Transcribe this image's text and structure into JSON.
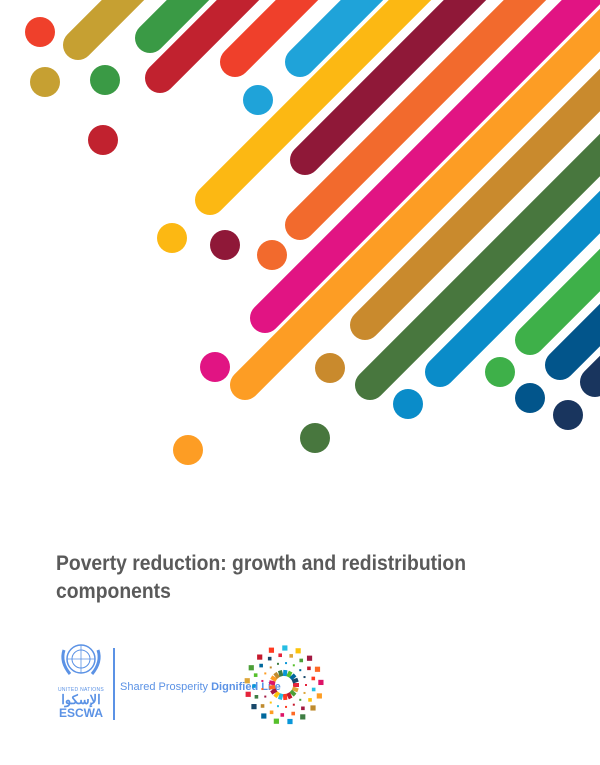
{
  "title": "Poverty reduction: growth and redistribution components",
  "logos": {
    "un_label": "UNITED NATIONS",
    "escwa_arabic": "الإسكوا",
    "escwa": "ESCWA",
    "tagline_regular": "Shared Prosperity",
    "tagline_bold": "Dignified Life"
  },
  "colors": {
    "title": "#5a5a5a",
    "un_blue": "#5b92e5",
    "stripes": [
      "#c6a032",
      "#3a9a45",
      "#c1222f",
      "#ef402b",
      "#1fa3d9",
      "#fcb813",
      "#8f1838",
      "#f26a2d",
      "#e11483",
      "#fd9d24",
      "#c98a2d",
      "#48773e",
      "#0a8cc9",
      "#3eb049",
      "#02558b",
      "#19355e"
    ]
  }
}
